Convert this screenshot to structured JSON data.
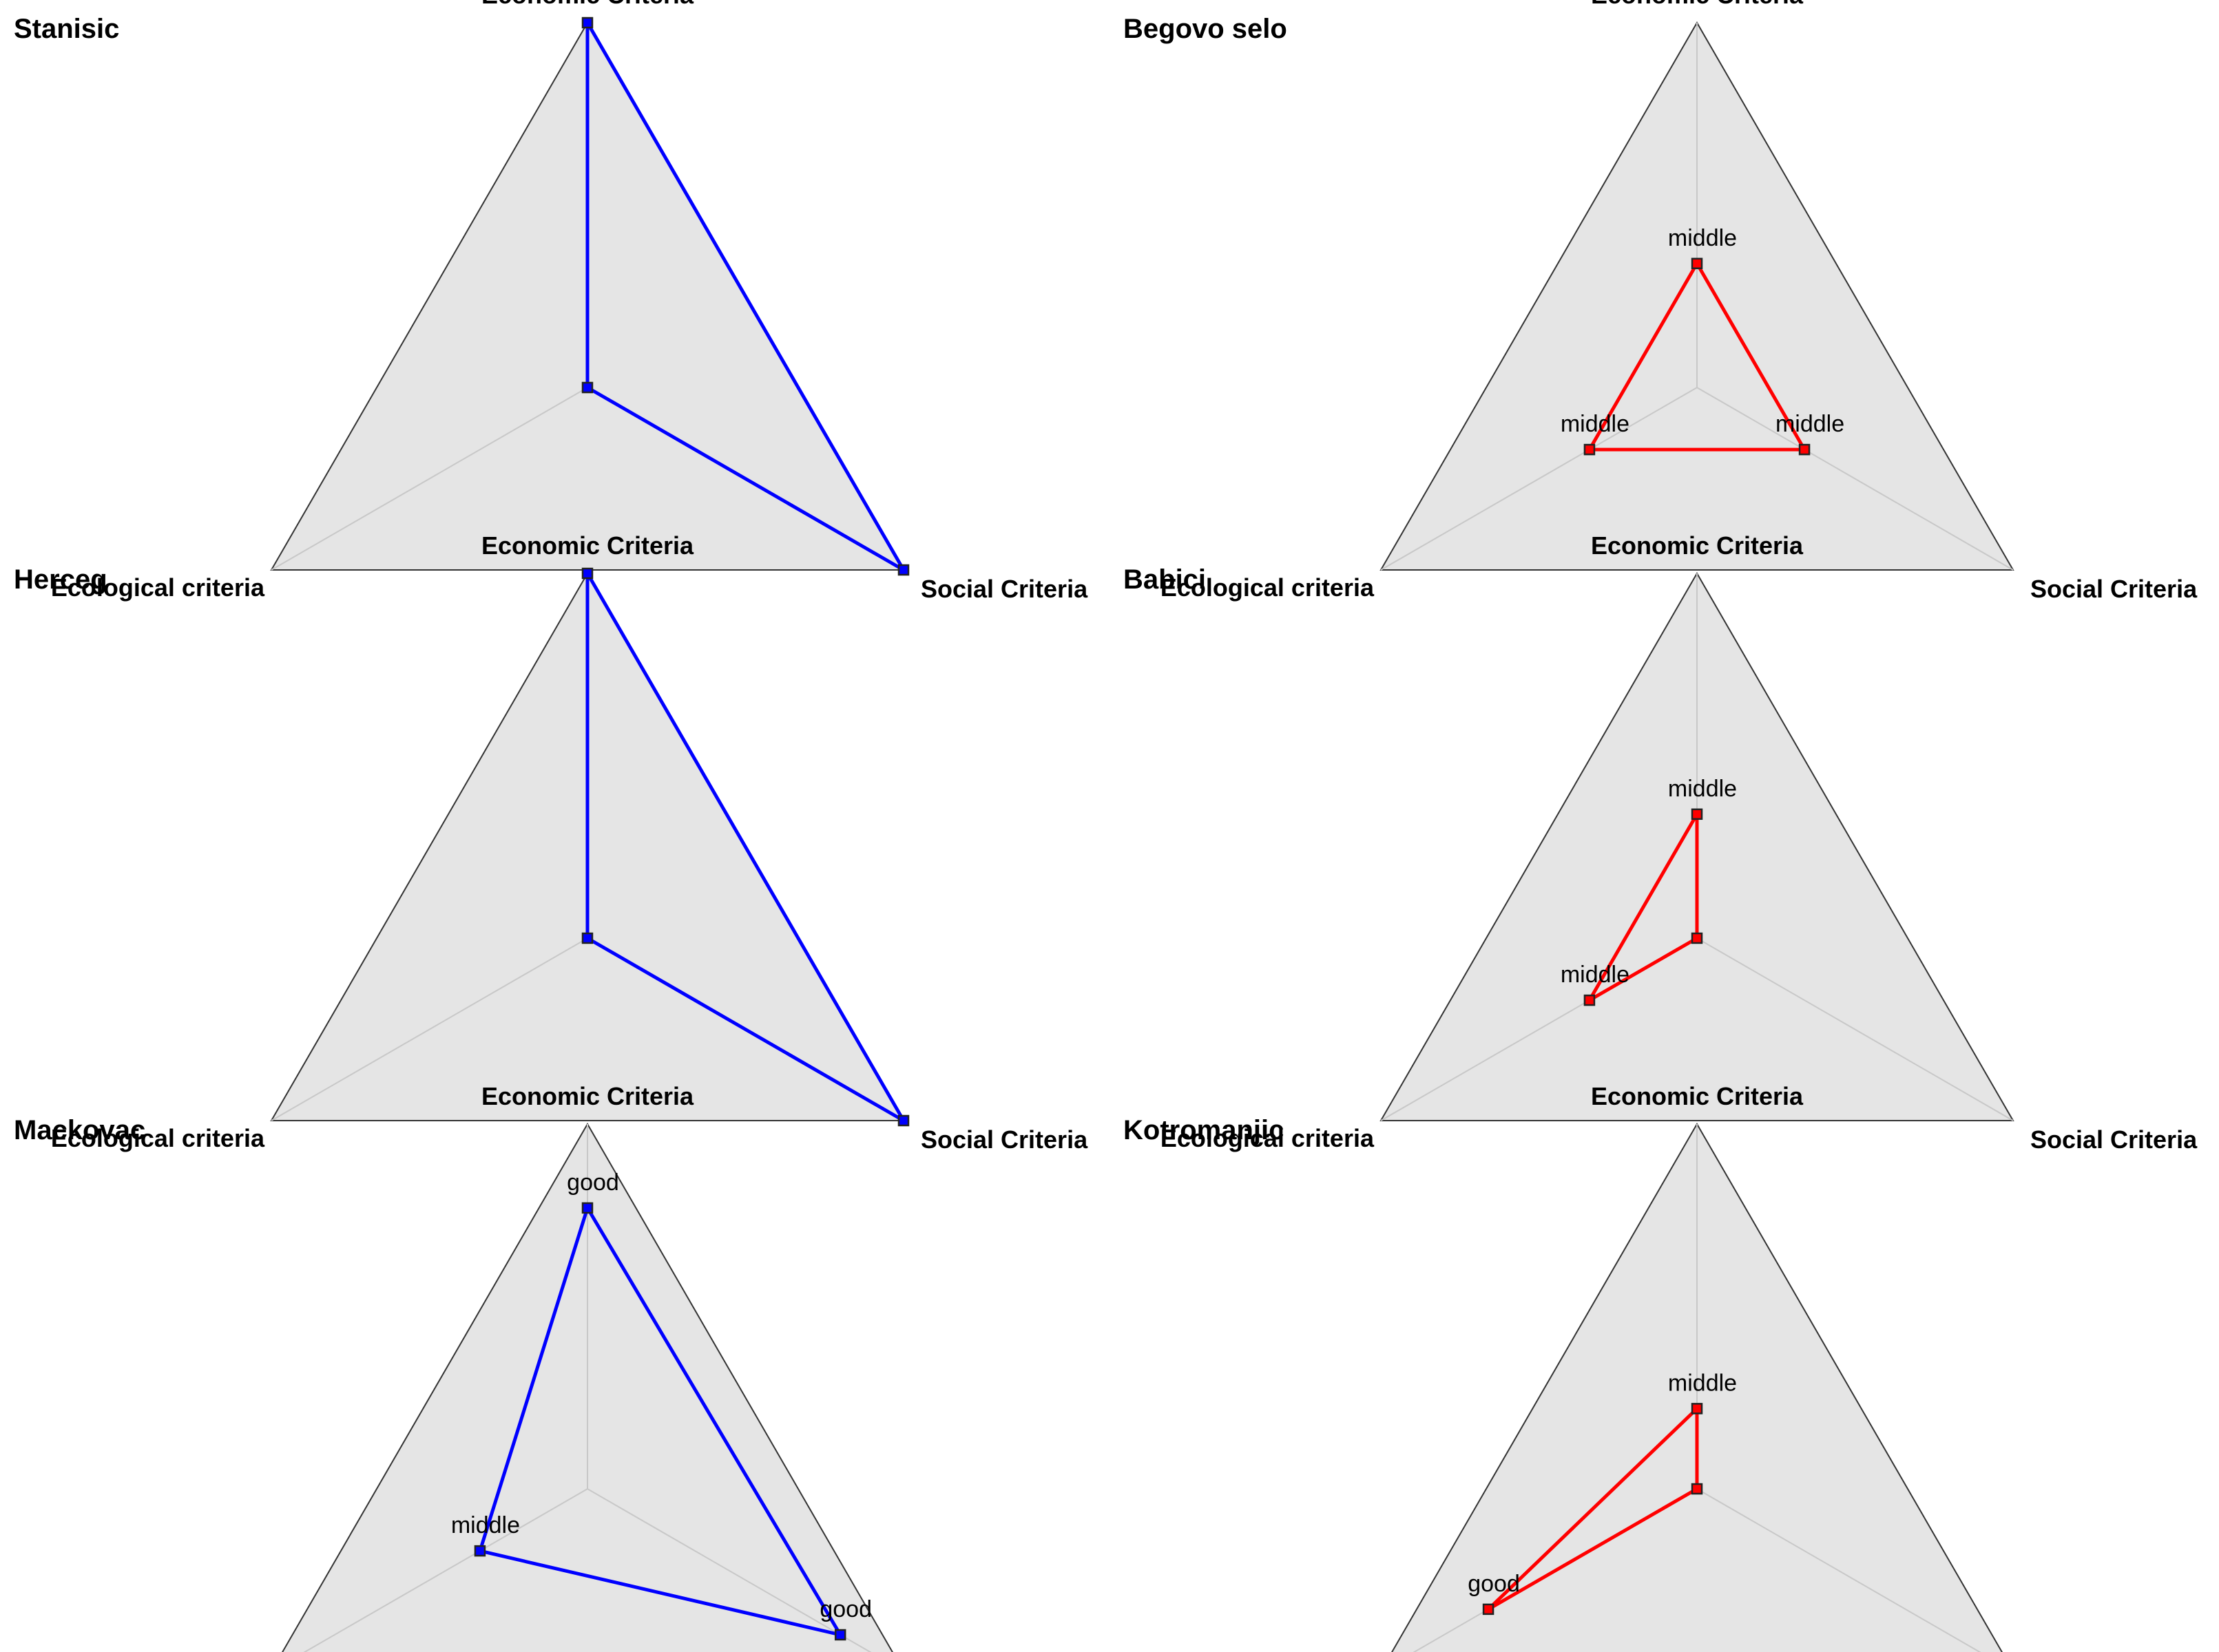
{
  "chart_data": [
    {
      "type": "radar",
      "title": "Stanisic",
      "axes": [
        "Economic Criteria",
        "Social Criteria",
        "Ecological criteria"
      ],
      "range": [
        0,
        1
      ],
      "series": [
        {
          "values": [
            1.0,
            1.0,
            0.0
          ],
          "labels": [
            "",
            "",
            ""
          ]
        }
      ],
      "color": "#0000ff"
    },
    {
      "type": "radar",
      "title": "Begovo selo",
      "axes": [
        "Economic Criteria",
        "Social Criteria",
        "Ecological criteria"
      ],
      "range": [
        0,
        1
      ],
      "series": [
        {
          "values": [
            0.34,
            0.34,
            0.34
          ],
          "labels": [
            "middle",
            "middle",
            "middle"
          ]
        }
      ],
      "color": "#ff0000"
    },
    {
      "type": "radar",
      "title": "Herceg",
      "axes": [
        "Economic Criteria",
        "Social Criteria",
        "Ecological criteria"
      ],
      "range": [
        0,
        1
      ],
      "series": [
        {
          "values": [
            1.0,
            1.0,
            0.0
          ],
          "labels": [
            "",
            "",
            ""
          ]
        }
      ],
      "color": "#0000ff"
    },
    {
      "type": "radar",
      "title": "Babici",
      "axes": [
        "Economic Criteria",
        "Social Criteria",
        "Ecological criteria"
      ],
      "range": [
        0,
        1
      ],
      "series": [
        {
          "values": [
            0.34,
            0.0,
            0.34
          ],
          "labels": [
            "middle",
            "",
            "middle"
          ]
        }
      ],
      "color": "#ff0000"
    },
    {
      "type": "radar",
      "title": "Mackovac",
      "axes": [
        "Economic Criteria",
        "Social Criteria",
        "Ecological criteria"
      ],
      "range": [
        0,
        1
      ],
      "series": [
        {
          "values": [
            0.77,
            0.8,
            0.34
          ],
          "labels": [
            "good",
            "good",
            "middle"
          ]
        }
      ],
      "color": "#0000ff"
    },
    {
      "type": "radar",
      "title": "Kotromanjic",
      "axes": [
        "Economic Criteria",
        "Social Criteria",
        "Ecological criteria"
      ],
      "range": [
        0,
        1
      ],
      "series": [
        {
          "values": [
            0.22,
            0.0,
            0.66
          ],
          "labels": [
            "middle",
            "",
            "good"
          ]
        }
      ],
      "color": "#ff0000"
    }
  ]
}
